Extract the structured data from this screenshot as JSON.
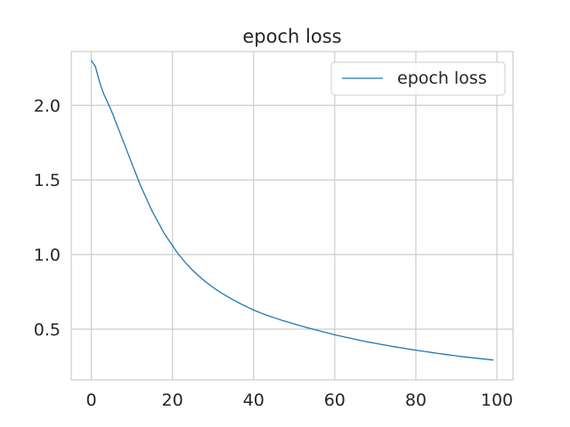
{
  "chart_data": {
    "type": "line",
    "title": "epoch loss",
    "xlabel": "",
    "ylabel": "",
    "xlim": [
      -4.95,
      103.95
    ],
    "ylim": [
      0.16,
      2.36
    ],
    "xticks": [
      0,
      20,
      40,
      60,
      80,
      100
    ],
    "xtick_labels": [
      "0",
      "20",
      "40",
      "60",
      "80",
      "100"
    ],
    "yticks": [
      0.5,
      1.0,
      1.5,
      2.0
    ],
    "ytick_labels": [
      "0.5",
      "1.0",
      "1.5",
      "2.0"
    ],
    "grid": true,
    "legend_position": "top-right",
    "colors": {
      "line": "#1f77b4",
      "grid": "#cccccc",
      "spine": "#cccccc",
      "text": "#262626"
    },
    "series": [
      {
        "name": "epoch loss",
        "x": [
          0,
          1,
          2,
          3,
          4,
          5,
          6,
          7,
          8,
          9,
          10,
          11,
          12,
          13,
          14,
          15,
          16,
          17,
          18,
          19,
          20,
          21,
          22,
          23,
          24,
          25,
          26,
          27,
          28,
          29,
          30,
          31,
          32,
          33,
          34,
          35,
          36,
          37,
          38,
          39,
          40,
          41,
          42,
          43,
          44,
          45,
          46,
          47,
          48,
          49,
          50,
          51,
          52,
          53,
          54,
          55,
          56,
          57,
          58,
          59,
          60,
          61,
          62,
          63,
          64,
          65,
          66,
          67,
          68,
          69,
          70,
          71,
          72,
          73,
          74,
          75,
          76,
          77,
          78,
          79,
          80,
          81,
          82,
          83,
          84,
          85,
          86,
          87,
          88,
          89,
          90,
          91,
          92,
          93,
          94,
          95,
          96,
          97,
          98,
          99
        ],
        "values": [
          2.3,
          2.26,
          2.16,
          2.08,
          2.02,
          1.96,
          1.89,
          1.82,
          1.75,
          1.68,
          1.61,
          1.54,
          1.47,
          1.41,
          1.35,
          1.29,
          1.24,
          1.19,
          1.14,
          1.1,
          1.06,
          1.02,
          0.985,
          0.952,
          0.922,
          0.894,
          0.868,
          0.844,
          0.821,
          0.8,
          0.78,
          0.761,
          0.743,
          0.727,
          0.711,
          0.696,
          0.681,
          0.667,
          0.654,
          0.641,
          0.628,
          0.617,
          0.606,
          0.596,
          0.586,
          0.577,
          0.568,
          0.559,
          0.551,
          0.543,
          0.535,
          0.527,
          0.519,
          0.511,
          0.504,
          0.497,
          0.49,
          0.483,
          0.476,
          0.469,
          0.462,
          0.456,
          0.45,
          0.444,
          0.438,
          0.432,
          0.426,
          0.42,
          0.415,
          0.41,
          0.405,
          0.4,
          0.395,
          0.39,
          0.385,
          0.381,
          0.376,
          0.372,
          0.367,
          0.363,
          0.359,
          0.355,
          0.351,
          0.347,
          0.343,
          0.339,
          0.335,
          0.331,
          0.328,
          0.324,
          0.321,
          0.317,
          0.314,
          0.311,
          0.308,
          0.305,
          0.302,
          0.299,
          0.296,
          0.293
        ]
      }
    ]
  }
}
